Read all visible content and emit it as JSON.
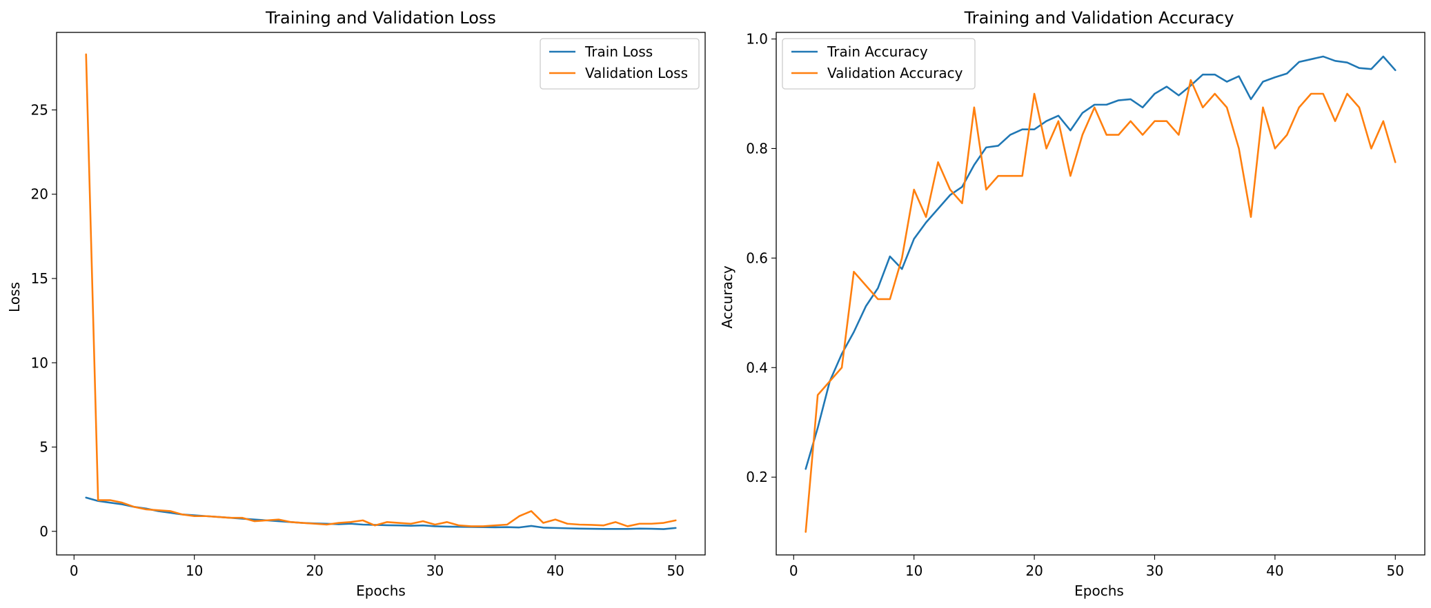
{
  "chart_data": [
    {
      "type": "line",
      "title": "Training and Validation Loss",
      "xlabel": "Epochs",
      "ylabel": "Loss",
      "xlim": [
        -1.45,
        52.45
      ],
      "ylim": [
        -1.4,
        29.6
      ],
      "xticks": [
        0,
        10,
        20,
        30,
        40,
        50
      ],
      "yticks": [
        0,
        5,
        10,
        15,
        20,
        25
      ],
      "legend": "upper-right",
      "grid": false,
      "x": [
        1,
        2,
        3,
        4,
        5,
        6,
        7,
        8,
        9,
        10,
        11,
        12,
        13,
        14,
        15,
        16,
        17,
        18,
        19,
        20,
        21,
        22,
        23,
        24,
        25,
        26,
        27,
        28,
        29,
        30,
        31,
        32,
        33,
        34,
        35,
        36,
        37,
        38,
        39,
        40,
        41,
        42,
        43,
        44,
        45,
        46,
        47,
        48,
        49,
        50
      ],
      "series": [
        {
          "name": "Train Loss",
          "color": "#1f77b4",
          "values": [
            2.0,
            1.8,
            1.7,
            1.6,
            1.45,
            1.35,
            1.2,
            1.1,
            1.0,
            0.95,
            0.9,
            0.85,
            0.8,
            0.75,
            0.7,
            0.65,
            0.6,
            0.55,
            0.5,
            0.47,
            0.45,
            0.42,
            0.45,
            0.4,
            0.38,
            0.36,
            0.35,
            0.33,
            0.35,
            0.3,
            0.28,
            0.27,
            0.26,
            0.25,
            0.24,
            0.25,
            0.23,
            0.32,
            0.22,
            0.2,
            0.18,
            0.16,
            0.15,
            0.14,
            0.14,
            0.14,
            0.16,
            0.15,
            0.13,
            0.2
          ]
        },
        {
          "name": "Validation Loss",
          "color": "#ff7f0e",
          "values": [
            28.3,
            1.85,
            1.85,
            1.7,
            1.45,
            1.3,
            1.25,
            1.2,
            1.0,
            0.9,
            0.9,
            0.85,
            0.8,
            0.8,
            0.6,
            0.65,
            0.7,
            0.55,
            0.5,
            0.45,
            0.4,
            0.5,
            0.55,
            0.65,
            0.35,
            0.55,
            0.5,
            0.45,
            0.6,
            0.4,
            0.55,
            0.35,
            0.3,
            0.3,
            0.35,
            0.4,
            0.9,
            1.2,
            0.5,
            0.7,
            0.45,
            0.4,
            0.38,
            0.35,
            0.55,
            0.3,
            0.45,
            0.45,
            0.5,
            0.65
          ]
        }
      ]
    },
    {
      "type": "line",
      "title": "Training and Validation Accuracy",
      "xlabel": "Epochs",
      "ylabel": "Accuracy",
      "xlim": [
        -1.45,
        52.45
      ],
      "ylim": [
        0.058,
        1.012
      ],
      "xticks": [
        0,
        10,
        20,
        30,
        40,
        50
      ],
      "yticks": [
        0.2,
        0.4,
        0.6,
        0.8,
        1.0
      ],
      "ytick_labels": [
        "0.2",
        "0.4",
        "0.6",
        "0.8",
        "1.0"
      ],
      "legend": "upper-left",
      "grid": false,
      "x": [
        1,
        2,
        3,
        4,
        5,
        6,
        7,
        8,
        9,
        10,
        11,
        12,
        13,
        14,
        15,
        16,
        17,
        18,
        19,
        20,
        21,
        22,
        23,
        24,
        25,
        26,
        27,
        28,
        29,
        30,
        31,
        32,
        33,
        34,
        35,
        36,
        37,
        38,
        39,
        40,
        41,
        42,
        43,
        44,
        45,
        46,
        47,
        48,
        49,
        50
      ],
      "series": [
        {
          "name": "Train Accuracy",
          "color": "#1f77b4",
          "values": [
            0.215,
            0.29,
            0.375,
            0.425,
            0.465,
            0.512,
            0.545,
            0.603,
            0.58,
            0.635,
            0.665,
            0.69,
            0.715,
            0.73,
            0.77,
            0.802,
            0.805,
            0.825,
            0.835,
            0.835,
            0.85,
            0.86,
            0.833,
            0.865,
            0.88,
            0.88,
            0.888,
            0.89,
            0.875,
            0.9,
            0.913,
            0.897,
            0.915,
            0.935,
            0.935,
            0.922,
            0.932,
            0.89,
            0.922,
            0.93,
            0.937,
            0.958,
            0.963,
            0.968,
            0.96,
            0.957,
            0.947,
            0.945,
            0.968,
            0.943
          ]
        },
        {
          "name": "Validation Accuracy",
          "color": "#ff7f0e",
          "values": [
            0.1,
            0.35,
            0.375,
            0.4,
            0.575,
            0.55,
            0.525,
            0.525,
            0.6,
            0.725,
            0.675,
            0.775,
            0.725,
            0.7,
            0.875,
            0.725,
            0.75,
            0.75,
            0.75,
            0.9,
            0.8,
            0.85,
            0.75,
            0.825,
            0.875,
            0.825,
            0.825,
            0.85,
            0.825,
            0.85,
            0.85,
            0.825,
            0.925,
            0.875,
            0.9,
            0.875,
            0.8,
            0.675,
            0.875,
            0.8,
            0.825,
            0.875,
            0.9,
            0.9,
            0.85,
            0.9,
            0.875,
            0.8,
            0.85,
            0.775
          ]
        }
      ]
    }
  ]
}
